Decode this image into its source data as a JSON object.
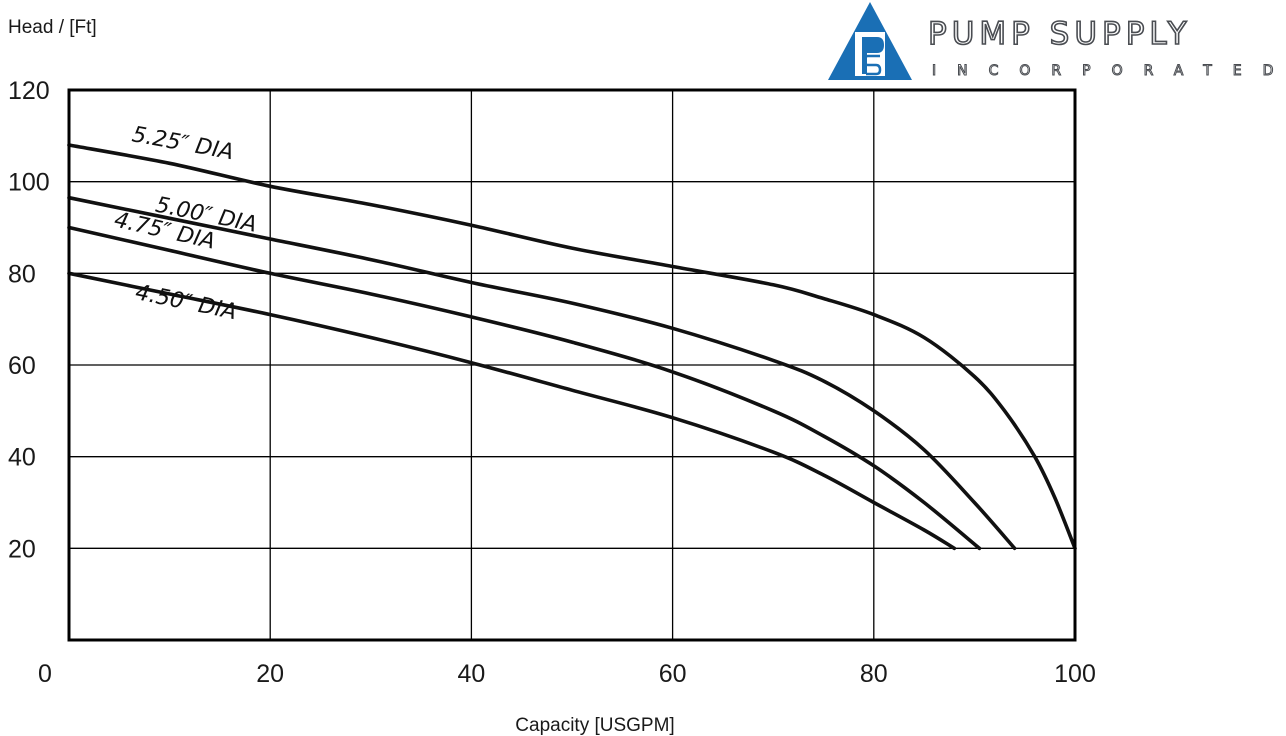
{
  "brand": {
    "name": "PUMP SUPPLY",
    "subtitle": "INCORPORATED",
    "accent_color": "#1a6fb5",
    "text_color": "#4a4d52",
    "icon": "ps-triangle-logo"
  },
  "chart_data": {
    "type": "line",
    "title": "",
    "xlabel": "Capacity [USGPM]",
    "ylabel": "Head / [Ft]",
    "xlim": [
      0,
      100
    ],
    "ylim": [
      0,
      120
    ],
    "xticks": [
      0,
      20,
      40,
      60,
      80,
      100
    ],
    "yticks": [
      20,
      40,
      60,
      80,
      100,
      120
    ],
    "x_origin_label": "0",
    "grid": true,
    "legend": "none",
    "line_color": "#111111",
    "series": [
      {
        "name": "5.25″ DIA",
        "x": [
          0,
          10,
          20,
          30,
          40,
          50,
          60,
          70,
          75,
          80,
          85,
          90,
          93,
          96,
          98,
          100
        ],
        "y": [
          108,
          104,
          99,
          95,
          90.5,
          85.5,
          81.5,
          77.5,
          74.5,
          71,
          66,
          57.5,
          50,
          40,
          31,
          20
        ]
      },
      {
        "name": "5.00″ DIA",
        "x": [
          0,
          10,
          20,
          30,
          40,
          50,
          60,
          70,
          75,
          80,
          85,
          90,
          94
        ],
        "y": [
          96.5,
          92,
          87.5,
          83,
          78,
          73.5,
          68,
          61,
          56.5,
          50,
          41.5,
          30,
          20
        ]
      },
      {
        "name": "4.75″ DIA",
        "x": [
          0,
          10,
          20,
          30,
          40,
          50,
          60,
          70,
          75,
          80,
          85,
          90.5
        ],
        "y": [
          90,
          85,
          80,
          75.5,
          70.5,
          65,
          58.5,
          50,
          44.5,
          38,
          30,
          20
        ]
      },
      {
        "name": "4.50″ DIA",
        "x": [
          0,
          10,
          20,
          30,
          40,
          50,
          60,
          70,
          75,
          80,
          85,
          88
        ],
        "y": [
          80,
          75.5,
          71,
          66,
          60.5,
          54.5,
          48.5,
          41,
          36,
          30,
          24,
          20
        ]
      }
    ]
  }
}
